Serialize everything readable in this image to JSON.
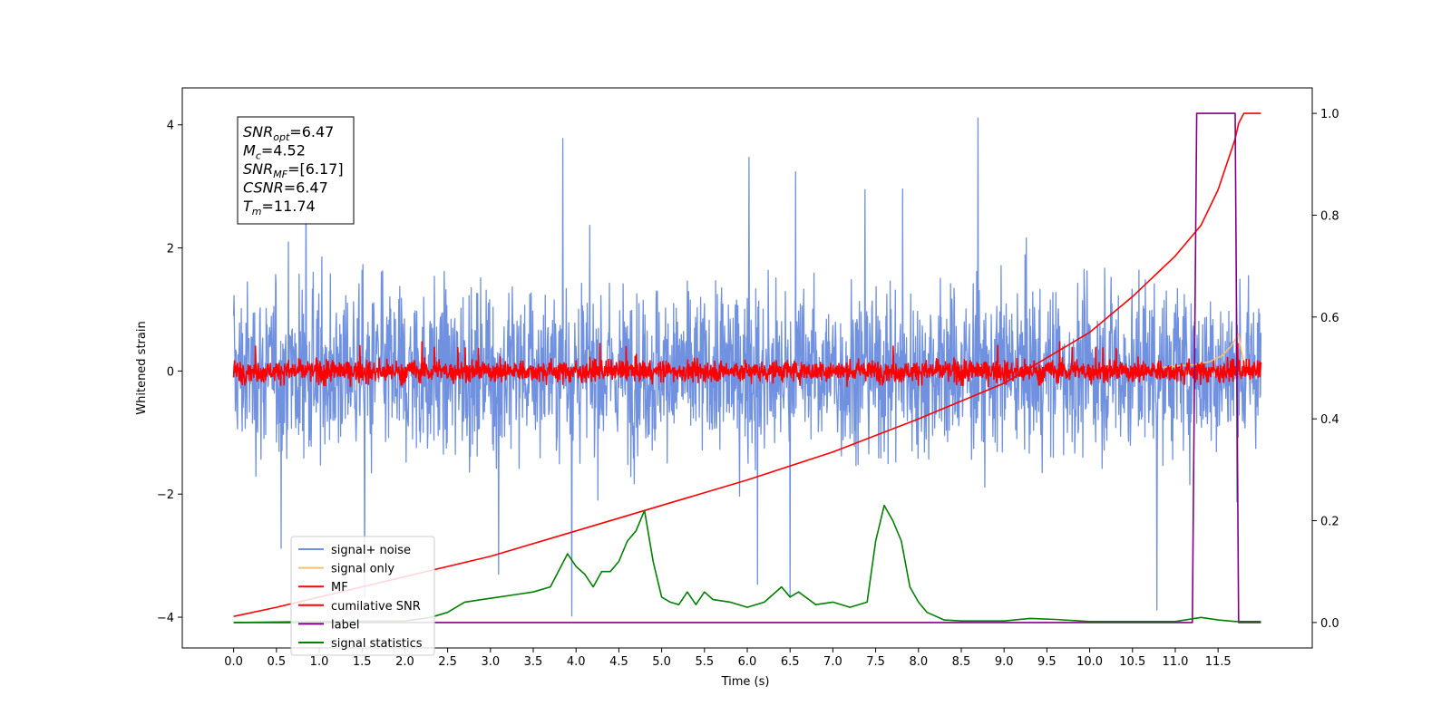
{
  "chart_data": {
    "type": "line",
    "xlabel": "Time (s)",
    "ylabel": "Whitened strain",
    "xlim": [
      -0.6,
      12.6
    ],
    "ylim": [
      -4.5,
      4.6
    ],
    "y2lim": [
      -0.05,
      1.05
    ],
    "xticks": [
      "0.0",
      "0.5",
      "1.0",
      "1.5",
      "2.0",
      "2.5",
      "3.0",
      "3.5",
      "4.0",
      "4.5",
      "5.0",
      "5.5",
      "6.0",
      "6.5",
      "7.0",
      "7.5",
      "8.0",
      "8.5",
      "9.0",
      "9.5",
      "10.0",
      "10.5",
      "11.0",
      "11.5"
    ],
    "yticks": [
      "−4",
      "−2",
      "0",
      "2",
      "4"
    ],
    "y2ticks": [
      "0.0",
      "0.2",
      "0.4",
      "0.6",
      "0.8",
      "1.0"
    ],
    "info_box": [
      {
        "sym": "SNR",
        "sub": "opt",
        "value": "=6.47"
      },
      {
        "sym": "M",
        "sub": "c",
        "value": "=4.52"
      },
      {
        "sym": "SNR",
        "sub": "MF",
        "value": "=[6.17]"
      },
      {
        "sym": "CSNR",
        "sub": "",
        "value": "=6.47"
      },
      {
        "sym": "T",
        "sub": "m",
        "value": "=11.74"
      }
    ],
    "legend": {
      "placement": "lower-left",
      "entries": [
        {
          "label": "signal+ noise",
          "color": "#7090e0"
        },
        {
          "label": "signal only",
          "color": "#f5c070"
        },
        {
          "label": "MF",
          "color": "#ff0000"
        },
        {
          "label": "cumilative SNR",
          "color": "#ff0000"
        },
        {
          "label": "label",
          "color": "#800080"
        },
        {
          "label": "signal statistics",
          "color": "#008000"
        }
      ]
    },
    "series": [
      {
        "name": "signal+ noise",
        "axis": "left",
        "color": "#7090e0",
        "kind": "noise",
        "x_range": [
          0.0,
          12.0
        ],
        "amplitude_range": [
          -4.0,
          4.2
        ]
      },
      {
        "name": "signal only",
        "axis": "left",
        "color": "#f5c070",
        "x": [
          10.8,
          11.0,
          11.2,
          11.4,
          11.55,
          11.65,
          11.74,
          11.8
        ],
        "y": [
          0.05,
          0.08,
          0.1,
          0.15,
          0.25,
          0.4,
          0.6,
          0.1
        ]
      },
      {
        "name": "MF",
        "axis": "left",
        "color": "#ff0000",
        "kind": "noise",
        "x_range": [
          0.0,
          12.0
        ],
        "amplitude_range": [
          -0.25,
          0.5
        ]
      },
      {
        "name": "cumilative SNR",
        "axis": "right",
        "color": "#ff0000",
        "x": [
          0.0,
          0.5,
          1.0,
          2.0,
          3.0,
          4.0,
          5.0,
          6.0,
          7.0,
          8.0,
          9.0,
          10.0,
          10.5,
          11.0,
          11.3,
          11.5,
          11.7,
          11.74,
          11.8,
          12.0
        ],
        "y": [
          0.012,
          0.03,
          0.05,
          0.09,
          0.13,
          0.18,
          0.23,
          0.28,
          0.335,
          0.4,
          0.47,
          0.57,
          0.64,
          0.72,
          0.78,
          0.85,
          0.95,
          0.98,
          1.0,
          1.0
        ]
      },
      {
        "name": "label",
        "axis": "right",
        "color": "#800080",
        "x": [
          0.0,
          11.2,
          11.25,
          11.7,
          11.74,
          12.0
        ],
        "y": [
          0.0,
          0.0,
          1.0,
          1.0,
          0.0,
          0.0
        ]
      },
      {
        "name": "signal statistics",
        "axis": "right",
        "color": "#008000",
        "x": [
          0.0,
          1.0,
          2.0,
          2.3,
          2.5,
          2.7,
          2.9,
          3.1,
          3.3,
          3.5,
          3.7,
          3.9,
          4.0,
          4.1,
          4.2,
          4.3,
          4.4,
          4.5,
          4.6,
          4.7,
          4.8,
          4.9,
          5.0,
          5.1,
          5.2,
          5.3,
          5.4,
          5.5,
          5.6,
          5.8,
          6.0,
          6.2,
          6.4,
          6.5,
          6.6,
          6.8,
          7.0,
          7.2,
          7.4,
          7.5,
          7.6,
          7.7,
          7.8,
          7.9,
          8.0,
          8.1,
          8.3,
          8.5,
          9.0,
          9.3,
          9.6,
          10.0,
          10.5,
          11.0,
          11.3,
          11.5,
          11.7,
          12.0
        ],
        "y": [
          0.0,
          0.002,
          0.003,
          0.01,
          0.02,
          0.04,
          0.045,
          0.05,
          0.055,
          0.06,
          0.07,
          0.135,
          0.11,
          0.095,
          0.07,
          0.1,
          0.1,
          0.12,
          0.16,
          0.18,
          0.22,
          0.12,
          0.05,
          0.04,
          0.035,
          0.06,
          0.035,
          0.06,
          0.045,
          0.04,
          0.03,
          0.04,
          0.07,
          0.05,
          0.06,
          0.035,
          0.04,
          0.03,
          0.04,
          0.16,
          0.23,
          0.2,
          0.16,
          0.07,
          0.04,
          0.02,
          0.005,
          0.003,
          0.003,
          0.008,
          0.006,
          0.002,
          0.002,
          0.002,
          0.01,
          0.005,
          0.002,
          0.002
        ]
      }
    ]
  }
}
